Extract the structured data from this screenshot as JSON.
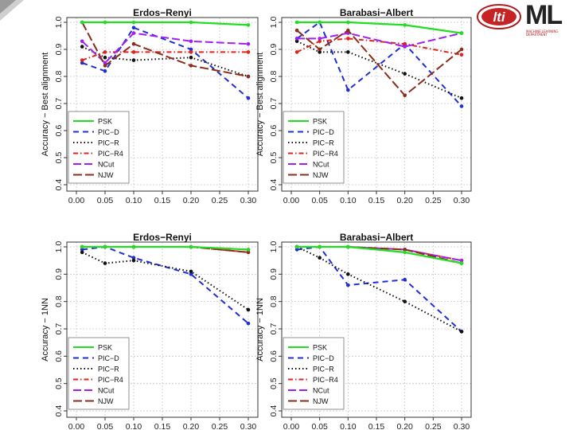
{
  "slide": {
    "logos": {
      "lti": "lti",
      "ml": "ML",
      "ml_subtitle": "Machine Learning Department"
    }
  },
  "colors": {
    "PSK": "#22dd22",
    "PIC-D": "#1f2fd6",
    "PIC-R": "#111111",
    "PIC-R4": "#e0231c",
    "NCut": "#a020f0",
    "NJW": "#8b2d1a"
  },
  "chart_data": [
    {
      "type": "line",
      "title": "Erdos−Renyi",
      "xlabel": "",
      "ylabel": "Accuracy − Best alignment",
      "x": [
        0.01,
        0.05,
        0.1,
        0.2,
        0.3
      ],
      "xticks": [
        "0.00",
        "0.05",
        "0.10",
        "0.15",
        "0.20",
        "0.25",
        "0.30"
      ],
      "xlim": [
        0.0,
        0.3
      ],
      "yticks": [
        "0.4",
        "0.5",
        "0.6",
        "0.7",
        "0.8",
        "0.9",
        "1.0"
      ],
      "ylim": [
        0.4,
        1.0
      ],
      "legend": "bottom-left",
      "series": [
        {
          "name": "PSK",
          "values": [
            1.0,
            1.0,
            1.0,
            1.0,
            0.99
          ]
        },
        {
          "name": "PIC−D",
          "values": [
            0.85,
            0.82,
            0.98,
            0.9,
            0.72
          ]
        },
        {
          "name": "PIC−R",
          "values": [
            0.91,
            0.87,
            0.86,
            0.87,
            0.8
          ]
        },
        {
          "name": "PIC−R4",
          "values": [
            0.86,
            0.89,
            0.89,
            0.89,
            0.89
          ]
        },
        {
          "name": "NCut",
          "values": [
            0.93,
            0.85,
            0.96,
            0.93,
            0.92
          ]
        },
        {
          "name": "NJW",
          "values": [
            1.0,
            0.84,
            0.92,
            0.84,
            0.8
          ]
        }
      ]
    },
    {
      "type": "line",
      "title": "Barabasi−Albert",
      "xlabel": "",
      "ylabel": "Accuracy − Best alignment",
      "x": [
        0.01,
        0.05,
        0.1,
        0.2,
        0.3
      ],
      "xticks": [
        "0.00",
        "0.05",
        "0.10",
        "0.15",
        "0.20",
        "0.25",
        "0.30"
      ],
      "xlim": [
        0.0,
        0.3
      ],
      "yticks": [
        "0.4",
        "0.5",
        "0.6",
        "0.7",
        "0.8",
        "0.9",
        "1.0"
      ],
      "ylim": [
        0.4,
        1.0
      ],
      "legend": "bottom-left",
      "series": [
        {
          "name": "PSK",
          "values": [
            1.0,
            1.0,
            1.0,
            0.99,
            0.96
          ]
        },
        {
          "name": "PIC−D",
          "values": [
            0.94,
            1.0,
            0.75,
            0.92,
            0.69
          ]
        },
        {
          "name": "PIC−R",
          "values": [
            0.93,
            0.89,
            0.89,
            0.81,
            0.72
          ]
        },
        {
          "name": "PIC−R4",
          "values": [
            0.89,
            0.93,
            0.94,
            0.92,
            0.88
          ]
        },
        {
          "name": "NCut",
          "values": [
            0.94,
            0.94,
            0.96,
            0.91,
            0.96
          ]
        },
        {
          "name": "NJW",
          "values": [
            0.97,
            0.9,
            0.97,
            0.73,
            0.9
          ]
        }
      ]
    },
    {
      "type": "line",
      "title": "Erdos−Renyi",
      "xlabel": "",
      "ylabel": "Accuracy − 1NN",
      "x": [
        0.01,
        0.05,
        0.1,
        0.2,
        0.3
      ],
      "xticks": [
        "0.00",
        "0.05",
        "0.10",
        "0.15",
        "0.20",
        "0.25",
        "0.30"
      ],
      "xlim": [
        0.0,
        0.3
      ],
      "yticks": [
        "0.4",
        "0.5",
        "0.6",
        "0.7",
        "0.8",
        "0.9",
        "1.0"
      ],
      "ylim": [
        0.4,
        1.0
      ],
      "legend": "bottom-left",
      "series": [
        {
          "name": "PSK",
          "values": [
            1.0,
            1.0,
            1.0,
            1.0,
            0.99
          ]
        },
        {
          "name": "PIC−D",
          "values": [
            0.99,
            1.0,
            0.96,
            0.9,
            0.72
          ]
        },
        {
          "name": "PIC−R",
          "values": [
            0.98,
            0.94,
            0.95,
            0.91,
            0.77
          ]
        },
        {
          "name": "PIC−R4",
          "values": [
            1.0,
            1.0,
            1.0,
            1.0,
            0.98
          ]
        },
        {
          "name": "NCut",
          "values": [
            1.0,
            1.0,
            1.0,
            1.0,
            0.99
          ]
        },
        {
          "name": "NJW",
          "values": [
            1.0,
            1.0,
            1.0,
            1.0,
            0.98
          ]
        }
      ]
    },
    {
      "type": "line",
      "title": "Barabasi−Albert",
      "xlabel": "",
      "ylabel": "Accuracy − 1NN",
      "x": [
        0.01,
        0.05,
        0.1,
        0.2,
        0.3
      ],
      "xticks": [
        "0.00",
        "0.05",
        "0.10",
        "0.15",
        "0.20",
        "0.25",
        "0.30"
      ],
      "xlim": [
        0.0,
        0.3
      ],
      "yticks": [
        "0.4",
        "0.5",
        "0.6",
        "0.7",
        "0.8",
        "0.9",
        "1.0"
      ],
      "ylim": [
        0.4,
        1.0
      ],
      "legend": "bottom-left",
      "series": [
        {
          "name": "PSK",
          "values": [
            1.0,
            1.0,
            1.0,
            0.98,
            0.94
          ]
        },
        {
          "name": "PIC−D",
          "values": [
            0.99,
            1.0,
            0.86,
            0.88,
            0.69
          ]
        },
        {
          "name": "PIC−R",
          "values": [
            1.0,
            0.96,
            0.9,
            0.8,
            0.69
          ]
        },
        {
          "name": "PIC−R4",
          "values": [
            1.0,
            1.0,
            1.0,
            0.99,
            0.95
          ]
        },
        {
          "name": "NCut",
          "values": [
            1.0,
            1.0,
            1.0,
            0.99,
            0.95
          ]
        },
        {
          "name": "NJW",
          "values": [
            1.0,
            1.0,
            1.0,
            0.99,
            0.94
          ]
        }
      ]
    }
  ]
}
